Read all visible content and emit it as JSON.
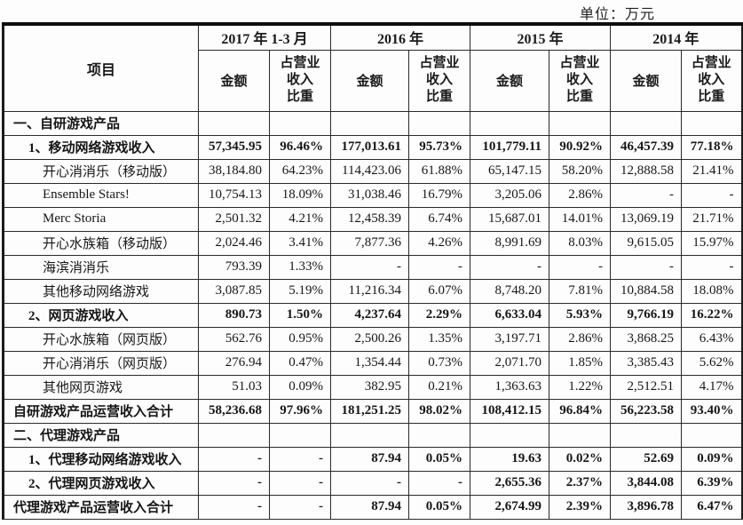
{
  "unit_label": "单位：万元",
  "table": {
    "item_header": "项目",
    "period_headers": [
      "2017 年 1-3 月",
      "2016 年",
      "2015 年",
      "2014 年"
    ],
    "amount_header": "金额",
    "ratio_header": "占营业\n收入\n比重",
    "rows": [
      {
        "label": "一、自研游戏产品",
        "indent": 1,
        "bold": true,
        "values": [
          "",
          "",
          "",
          "",
          "",
          "",
          "",
          ""
        ]
      },
      {
        "label": "1、移动网络游戏收入",
        "indent": 2,
        "bold": true,
        "values": [
          "57,345.95",
          "96.46%",
          "177,013.61",
          "95.73%",
          "101,779.11",
          "90.92%",
          "46,457.39",
          "77.18%"
        ]
      },
      {
        "label": "开心消消乐（移动版）",
        "indent": 3,
        "bold": false,
        "values": [
          "38,184.80",
          "64.23%",
          "114,423.06",
          "61.88%",
          "65,147.15",
          "58.20%",
          "12,888.58",
          "21.41%"
        ]
      },
      {
        "label": "Ensemble Stars!",
        "indent": 3,
        "bold": false,
        "values": [
          "10,754.13",
          "18.09%",
          "31,038.46",
          "16.79%",
          "3,205.06",
          "2.86%",
          "-",
          "-"
        ]
      },
      {
        "label": "Merc Storia",
        "indent": 3,
        "bold": false,
        "values": [
          "2,501.32",
          "4.21%",
          "12,458.39",
          "6.74%",
          "15,687.01",
          "14.01%",
          "13,069.19",
          "21.71%"
        ]
      },
      {
        "label": "开心水族箱（移动版）",
        "indent": 3,
        "bold": false,
        "values": [
          "2,024.46",
          "3.41%",
          "7,877.36",
          "4.26%",
          "8,991.69",
          "8.03%",
          "9,615.05",
          "15.97%"
        ]
      },
      {
        "label": "海滨消消乐",
        "indent": 3,
        "bold": false,
        "values": [
          "793.39",
          "1.33%",
          "-",
          "-",
          "-",
          "-",
          "-",
          "-"
        ]
      },
      {
        "label": "其他移动网络游戏",
        "indent": 3,
        "bold": false,
        "values": [
          "3,087.85",
          "5.19%",
          "11,216.34",
          "6.07%",
          "8,748.20",
          "7.81%",
          "10,884.58",
          "18.08%"
        ]
      },
      {
        "label": "2、网页游戏收入",
        "indent": 2,
        "bold": true,
        "values": [
          "890.73",
          "1.50%",
          "4,237.64",
          "2.29%",
          "6,633.04",
          "5.93%",
          "9,766.19",
          "16.22%"
        ]
      },
      {
        "label": "开心水族箱（网页版）",
        "indent": 3,
        "bold": false,
        "values": [
          "562.76",
          "0.95%",
          "2,500.26",
          "1.35%",
          "3,197.71",
          "2.86%",
          "3,868.25",
          "6.43%"
        ]
      },
      {
        "label": "开心消消乐（网页版）",
        "indent": 3,
        "bold": false,
        "values": [
          "276.94",
          "0.47%",
          "1,354.44",
          "0.73%",
          "2,071.70",
          "1.85%",
          "3,385.43",
          "5.62%"
        ]
      },
      {
        "label": "其他网页游戏",
        "indent": 3,
        "bold": false,
        "values": [
          "51.03",
          "0.09%",
          "382.95",
          "0.21%",
          "1,363.63",
          "1.22%",
          "2,512.51",
          "4.17%"
        ]
      },
      {
        "label": "自研游戏产品运营收入合计",
        "indent": 1,
        "bold": true,
        "values": [
          "58,236.68",
          "97.96%",
          "181,251.25",
          "98.02%",
          "108,412.15",
          "96.84%",
          "56,223.58",
          "93.40%"
        ]
      },
      {
        "label": "二、代理游戏产品",
        "indent": 1,
        "bold": true,
        "values": [
          "",
          "",
          "",
          "",
          "",
          "",
          "",
          ""
        ]
      },
      {
        "label": "1、代理移动网络游戏收入",
        "indent": 2,
        "bold": true,
        "values": [
          "-",
          "-",
          "87.94",
          "0.05%",
          "19.63",
          "0.02%",
          "52.69",
          "0.09%"
        ]
      },
      {
        "label": "2、代理网页游戏收入",
        "indent": 2,
        "bold": true,
        "values": [
          "-",
          "-",
          "-",
          "-",
          "2,655.36",
          "2.37%",
          "3,844.08",
          "6.39%"
        ]
      },
      {
        "label": "代理游戏产品运营收入合计",
        "indent": 1,
        "bold": true,
        "values": [
          "-",
          "-",
          "87.94",
          "0.05%",
          "2,674.99",
          "2.39%",
          "3,896.78",
          "6.47%"
        ]
      }
    ]
  }
}
